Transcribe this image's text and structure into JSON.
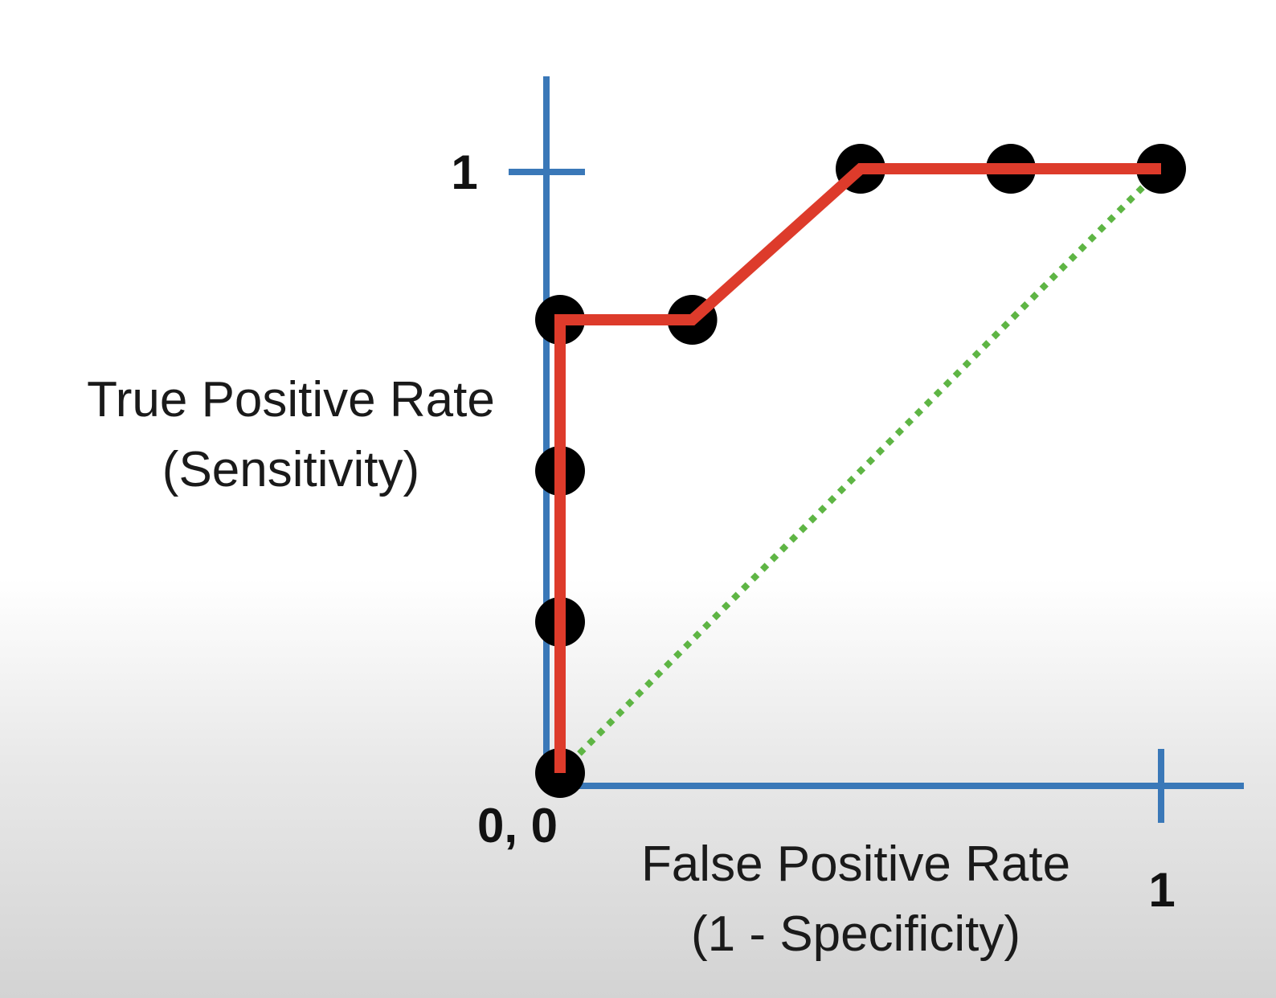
{
  "chart_data": {
    "type": "line",
    "title": "",
    "xlabel": [
      "False Positive Rate",
      "(1 - Specificity)"
    ],
    "ylabel": [
      "True Positive Rate",
      "(Sensitivity)"
    ],
    "origin_label": "0, 0",
    "x_tick_label": "1",
    "y_tick_label": "1",
    "xlim": [
      0,
      1
    ],
    "ylim": [
      0,
      1
    ],
    "grid": false,
    "points": [
      {
        "x": 0,
        "y": 0
      },
      {
        "x": 0,
        "y": 0.25
      },
      {
        "x": 0,
        "y": 0.5
      },
      {
        "x": 0,
        "y": 0.75
      },
      {
        "x": 0.22,
        "y": 0.75
      },
      {
        "x": 0.5,
        "y": 1
      },
      {
        "x": 0.75,
        "y": 1
      },
      {
        "x": 1,
        "y": 1
      }
    ],
    "roc_curve": [
      {
        "x": 0,
        "y": 0
      },
      {
        "x": 0,
        "y": 0.75
      },
      {
        "x": 0.22,
        "y": 0.75
      },
      {
        "x": 0.5,
        "y": 1
      },
      {
        "x": 1,
        "y": 1
      }
    ],
    "reference_line": [
      {
        "x": 0,
        "y": 0
      },
      {
        "x": 1,
        "y": 1
      }
    ],
    "colors": {
      "axes": "#3a78b8",
      "curve": "#dd3b2b",
      "points": "#000000",
      "reference": "#5eb544"
    }
  }
}
